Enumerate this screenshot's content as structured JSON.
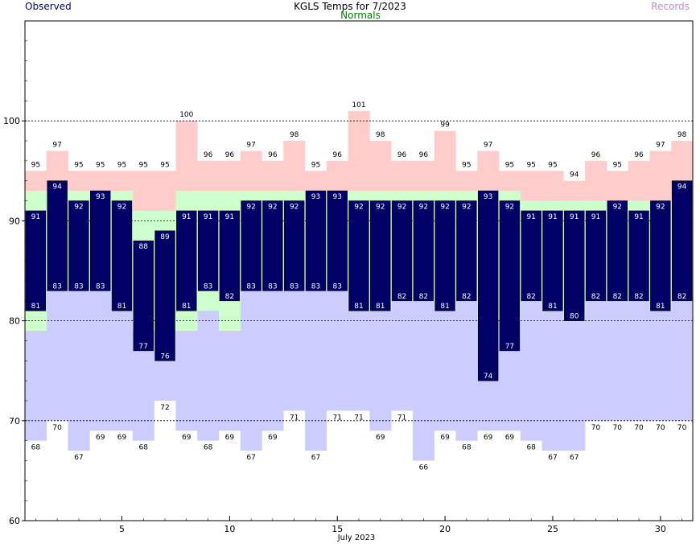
{
  "title": "KGLS Temps for 7/2023",
  "legend": {
    "observed": "Observed",
    "normals": "Normals",
    "records": "Records"
  },
  "colors": {
    "observed": "#000066",
    "normal_band": "#ccffcc",
    "record_high": "#ffcccc",
    "record_low": "#ccccff",
    "observed_text": "#ffffff",
    "legend_observed": "#000080",
    "legend_normals": "#008000",
    "legend_records": "#cc88cc"
  },
  "chart_data": {
    "type": "bar",
    "title": "KGLS Temps for 7/2023",
    "xlabel": "July 2023",
    "ylabel": "",
    "xlim": [
      0.5,
      31.5
    ],
    "ylim": [
      60,
      110
    ],
    "x_ticks": [
      5,
      10,
      15,
      20,
      25,
      30
    ],
    "y_ticks": [
      60,
      70,
      80,
      90,
      100
    ],
    "dashed_gridlines": [
      70,
      80,
      90,
      100
    ],
    "days": [
      1,
      2,
      3,
      4,
      5,
      6,
      7,
      8,
      9,
      10,
      11,
      12,
      13,
      14,
      15,
      16,
      17,
      18,
      19,
      20,
      21,
      22,
      23,
      24,
      25,
      26,
      27,
      28,
      29,
      30,
      31
    ],
    "record_high": [
      95,
      97,
      95,
      95,
      95,
      95,
      95,
      100,
      96,
      96,
      97,
      96,
      98,
      95,
      96,
      101,
      98,
      96,
      96,
      99,
      95,
      97,
      95,
      95,
      95,
      94,
      96,
      95,
      96,
      97,
      98
    ],
    "normal_high": [
      93,
      93,
      93,
      93,
      93,
      91,
      91,
      93,
      93,
      93,
      93,
      93,
      93,
      93,
      93,
      93,
      93,
      93,
      93,
      93,
      93,
      93,
      93,
      92,
      92,
      92,
      92,
      92,
      92,
      92,
      92
    ],
    "normal_low": [
      79,
      83,
      83,
      83,
      81,
      79,
      79,
      79,
      81,
      79,
      83,
      83,
      83,
      83,
      83,
      81,
      81,
      82,
      82,
      81,
      82,
      80,
      80,
      82,
      81,
      80,
      82,
      82,
      82,
      81,
      82
    ],
    "record_low": [
      68,
      70,
      67,
      69,
      69,
      68,
      72,
      69,
      68,
      69,
      67,
      69,
      71,
      67,
      71,
      71,
      69,
      71,
      66,
      69,
      68,
      69,
      69,
      68,
      67,
      67,
      70,
      70,
      70,
      70,
      70
    ],
    "observed_high": [
      91,
      94,
      92,
      93,
      92,
      88,
      89,
      91,
      91,
      91,
      92,
      92,
      92,
      93,
      93,
      92,
      92,
      92,
      92,
      92,
      92,
      93,
      92,
      91,
      91,
      91,
      91,
      92,
      91,
      92,
      94
    ],
    "observed_low": [
      81,
      83,
      83,
      83,
      81,
      77,
      76,
      81,
      83,
      82,
      83,
      83,
      83,
      83,
      83,
      81,
      81,
      82,
      82,
      81,
      82,
      74,
      77,
      82,
      81,
      80,
      82,
      82,
      82,
      81,
      82
    ]
  }
}
